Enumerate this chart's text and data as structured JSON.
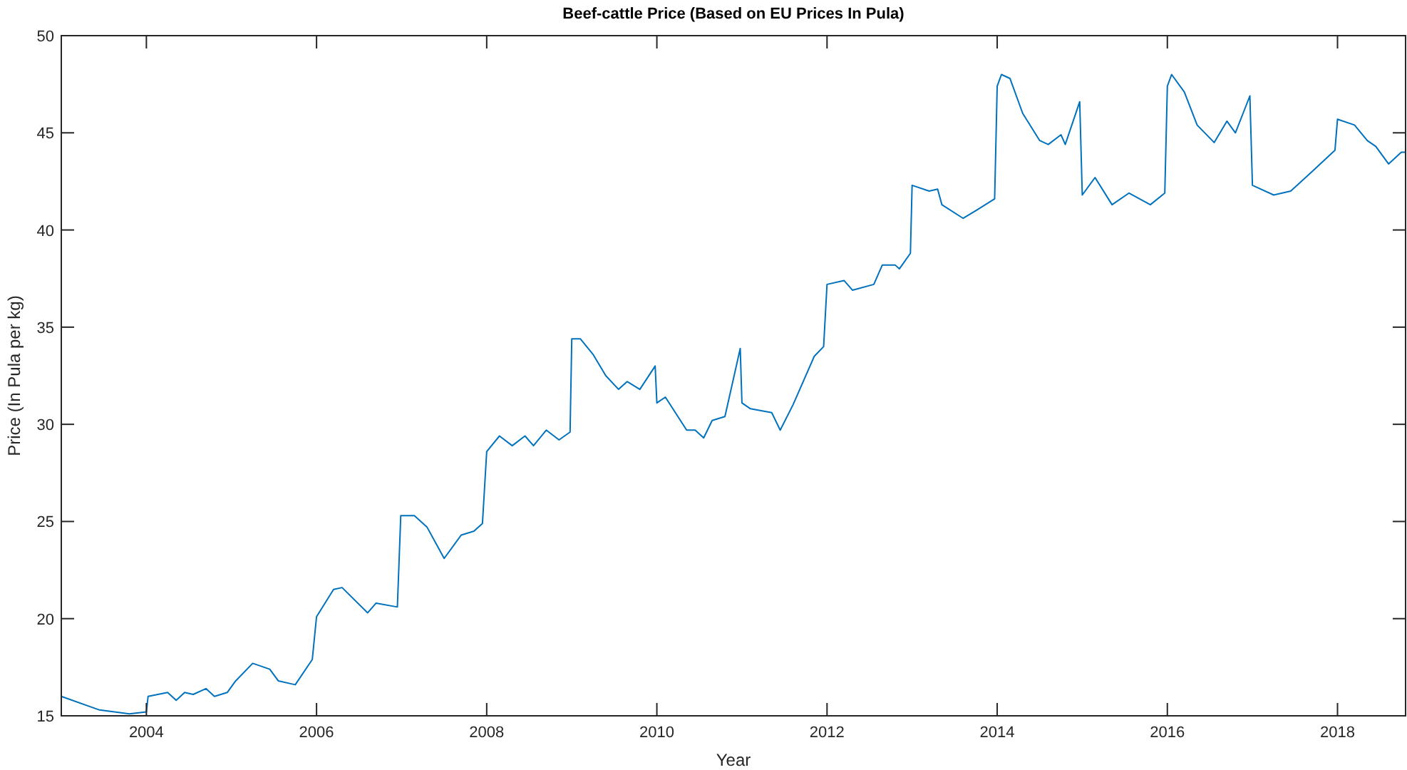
{
  "chart_data": {
    "type": "line",
    "title": "Beef-cattle Price (Based on EU Prices In Pula)",
    "xlabel": "Year",
    "ylabel": "Price (In Pula per kg)",
    "xlim": [
      2003,
      2018.8
    ],
    "ylim": [
      15,
      50
    ],
    "xticks": [
      2004,
      2006,
      2008,
      2010,
      2012,
      2014,
      2016,
      2018
    ],
    "yticks": [
      15,
      20,
      25,
      30,
      35,
      40,
      45,
      50
    ],
    "grid": false,
    "marker": "none",
    "line_style": "solid",
    "series": [
      {
        "color": "#0072bd",
        "x": [
          2003.0,
          2003.45,
          2003.8,
          2004.0,
          2004.02,
          2004.25,
          2004.35,
          2004.45,
          2004.55,
          2004.7,
          2004.8,
          2004.95,
          2005.05,
          2005.25,
          2005.45,
          2005.55,
          2005.75,
          2005.95,
          2006.0,
          2006.2,
          2006.3,
          2006.6,
          2006.7,
          2006.95,
          2006.99,
          2007.15,
          2007.3,
          2007.5,
          2007.7,
          2007.85,
          2007.95,
          2008.0,
          2008.15,
          2008.3,
          2008.45,
          2008.55,
          2008.7,
          2008.85,
          2008.98,
          2009.0,
          2009.1,
          2009.25,
          2009.4,
          2009.55,
          2009.65,
          2009.8,
          2009.98,
          2010.0,
          2010.1,
          2010.35,
          2010.45,
          2010.55,
          2010.65,
          2010.8,
          2010.98,
          2011.0,
          2011.1,
          2011.35,
          2011.45,
          2011.6,
          2011.85,
          2011.96,
          2012.0,
          2012.2,
          2012.3,
          2012.55,
          2012.65,
          2012.8,
          2012.85,
          2012.98,
          2013.0,
          2013.2,
          2013.3,
          2013.35,
          2013.6,
          2013.75,
          2013.97,
          2014.0,
          2014.05,
          2014.15,
          2014.3,
          2014.5,
          2014.6,
          2014.75,
          2014.8,
          2014.97,
          2015.0,
          2015.15,
          2015.35,
          2015.55,
          2015.8,
          2015.97,
          2016.0,
          2016.05,
          2016.2,
          2016.35,
          2016.55,
          2016.7,
          2016.8,
          2016.97,
          2017.0,
          2017.25,
          2017.45,
          2017.7,
          2017.97,
          2018.0,
          2018.2,
          2018.35,
          2018.45,
          2018.6,
          2018.75,
          2018.8
        ],
        "values": [
          16.0,
          15.3,
          15.1,
          15.2,
          16.0,
          16.2,
          15.8,
          16.2,
          16.1,
          16.4,
          16.0,
          16.2,
          16.8,
          17.7,
          17.4,
          16.8,
          16.6,
          17.9,
          20.1,
          21.5,
          21.6,
          20.3,
          20.8,
          20.6,
          25.3,
          25.3,
          24.7,
          23.1,
          24.3,
          24.5,
          24.9,
          28.6,
          29.4,
          28.9,
          29.4,
          28.9,
          29.7,
          29.2,
          29.6,
          34.4,
          34.4,
          33.6,
          32.5,
          31.8,
          32.2,
          31.8,
          33.0,
          31.1,
          31.4,
          29.7,
          29.7,
          29.3,
          30.2,
          30.4,
          33.9,
          31.1,
          30.8,
          30.6,
          29.7,
          31.0,
          33.5,
          34.0,
          37.2,
          37.4,
          36.9,
          37.2,
          38.2,
          38.2,
          38.0,
          38.8,
          42.3,
          42.0,
          42.1,
          41.3,
          40.6,
          41.0,
          41.6,
          47.4,
          48.0,
          47.8,
          46.0,
          44.6,
          44.4,
          44.9,
          44.4,
          46.6,
          41.8,
          42.7,
          41.3,
          41.9,
          41.3,
          41.9,
          47.4,
          48.0,
          47.1,
          45.4,
          44.5,
          45.6,
          45.0,
          46.9,
          42.3,
          41.8,
          42.0,
          43.0,
          44.1,
          45.7,
          45.4,
          44.6,
          44.3,
          43.4,
          44.0,
          44.0
        ]
      }
    ]
  }
}
